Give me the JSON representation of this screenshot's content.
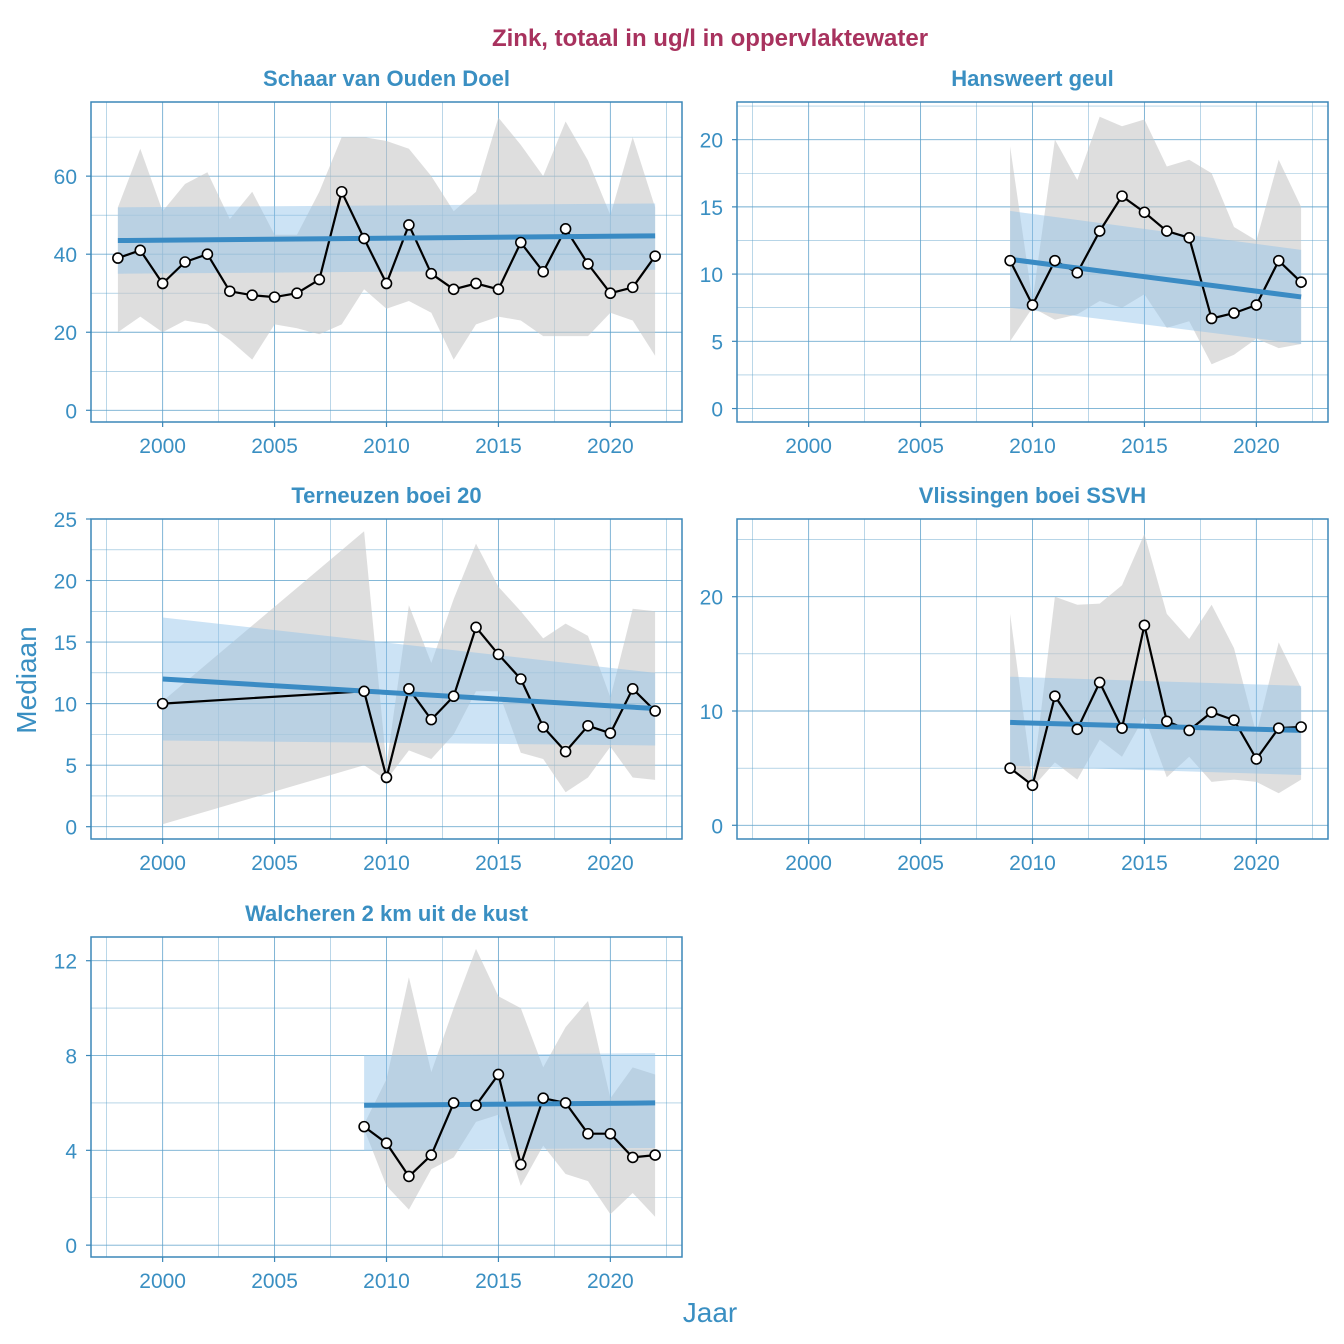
{
  "title": "Zink, totaal in ug/l in oppervlaktewater",
  "xlabel": "Jaar",
  "ylabel": "Mediaan",
  "colors": {
    "title": "#a8325e",
    "text": "#3a8fc2",
    "grid": "#5b9fc9",
    "frame": "#3b87b8",
    "trend": "#3a8bc4",
    "trend_band": "#8fc0e8",
    "range_band": "#c8c8c8",
    "line": "#000000"
  },
  "chart_data": [
    {
      "type": "line",
      "title": "Schaar van Ouden Doel",
      "xlim": [
        1996.8,
        2023.2
      ],
      "ylim": [
        -3,
        79
      ],
      "xticks": [
        2000,
        2005,
        2010,
        2015,
        2020
      ],
      "yticks": [
        0,
        20,
        40,
        60
      ],
      "x": [
        1998,
        1999,
        2000,
        2001,
        2002,
        2003,
        2004,
        2005,
        2006,
        2007,
        2008,
        2009,
        2010,
        2011,
        2012,
        2013,
        2014,
        2015,
        2016,
        2017,
        2018,
        2019,
        2020,
        2021,
        2022
      ],
      "median": [
        39,
        41,
        32.5,
        38,
        40,
        30.5,
        29.5,
        29,
        30,
        33.5,
        56,
        44,
        32.5,
        47.5,
        35,
        31,
        32.5,
        31,
        43,
        35.5,
        46.5,
        37.5,
        30,
        31.5,
        39.5
      ],
      "range_upper": [
        52,
        67,
        51,
        58,
        61,
        49,
        56,
        45,
        45,
        56,
        70,
        70,
        69,
        67,
        60,
        51,
        56,
        75,
        68,
        60,
        74,
        64,
        50,
        70,
        52
      ],
      "range_lower": [
        20,
        24,
        20,
        23,
        22,
        18,
        13,
        22,
        21,
        19.5,
        22,
        31,
        26,
        28,
        25,
        13,
        22,
        24,
        23,
        19,
        19,
        19,
        25,
        23,
        14
      ],
      "trend": [
        43.5,
        44.7
      ],
      "trend_upper": [
        52,
        53
      ],
      "trend_lower": [
        35,
        36
      ]
    },
    {
      "type": "line",
      "title": "Hansweert geul",
      "xlim": [
        1996.8,
        2023.2
      ],
      "ylim": [
        -1,
        22.8
      ],
      "xticks": [
        2000,
        2005,
        2010,
        2015,
        2020
      ],
      "yticks": [
        0,
        5,
        10,
        15,
        20
      ],
      "x": [
        2009,
        2010,
        2011,
        2012,
        2013,
        2014,
        2015,
        2016,
        2017,
        2018,
        2019,
        2020,
        2021,
        2022
      ],
      "median": [
        11,
        7.7,
        11,
        10.1,
        13.2,
        15.8,
        14.6,
        13.2,
        12.7,
        6.7,
        7.1,
        7.7,
        11,
        9.4
      ],
      "range_upper": [
        19.5,
        8,
        20,
        17,
        21.7,
        21,
        21.5,
        18,
        18.5,
        17.5,
        13.5,
        12.5,
        18.5,
        15
      ],
      "range_lower": [
        5,
        7.5,
        6.6,
        7,
        8,
        7.5,
        8.5,
        6,
        6.5,
        3.3,
        4,
        5.2,
        4.5,
        4.8
      ],
      "trend": [
        11.1,
        8.3
      ],
      "trend_upper": [
        14.7,
        11.8
      ],
      "trend_lower": [
        7.5,
        4.8
      ]
    },
    {
      "type": "line",
      "title": "Terneuzen boei 20",
      "xlim": [
        1996.8,
        2023.2
      ],
      "ylim": [
        -1,
        25
      ],
      "xticks": [
        2000,
        2005,
        2010,
        2015,
        2020
      ],
      "yticks": [
        0,
        5,
        10,
        15,
        20,
        25
      ],
      "x": [
        2000,
        2009,
        2010,
        2011,
        2012,
        2013,
        2014,
        2015,
        2016,
        2017,
        2018,
        2019,
        2020,
        2021,
        2022
      ],
      "median": [
        10,
        11,
        4,
        11.2,
        8.7,
        10.6,
        16.2,
        14,
        12,
        8.1,
        6.1,
        8.2,
        7.6,
        11.2,
        9.4
      ],
      "range_upper": [
        10.2,
        24,
        5,
        18,
        13.3,
        18.5,
        23,
        19.5,
        17.5,
        15.3,
        16.5,
        15.5,
        10.5,
        17.7,
        17.5
      ],
      "range_lower": [
        0.2,
        5,
        3.8,
        6.2,
        5.5,
        7.5,
        11,
        11,
        6,
        5.5,
        2.8,
        4,
        6.5,
        4,
        3.8
      ],
      "trend": [
        12,
        9.6
      ],
      "trend_upper": [
        17,
        12.5
      ],
      "trend_lower": [
        7,
        6.6
      ]
    },
    {
      "type": "line",
      "title": "Vlissingen boei SSVH",
      "xlim": [
        1996.8,
        2023.2
      ],
      "ylim": [
        -1.2,
        26.8
      ],
      "xticks": [
        2000,
        2005,
        2010,
        2015,
        2020
      ],
      "yticks": [
        0,
        10,
        20
      ],
      "x": [
        2009,
        2010,
        2011,
        2012,
        2013,
        2014,
        2015,
        2016,
        2017,
        2018,
        2019,
        2020,
        2021,
        2022
      ],
      "median": [
        5,
        3.5,
        11.3,
        8.4,
        12.5,
        8.5,
        17.5,
        9.1,
        8.3,
        9.9,
        9.2,
        5.8,
        8.5,
        8.6
      ],
      "range_upper": [
        18.5,
        3.8,
        20,
        19.3,
        19.4,
        21,
        25.5,
        18.5,
        16.3,
        19.3,
        15.5,
        8,
        16,
        12
      ],
      "range_lower": [
        5,
        3.3,
        5.5,
        4,
        7.5,
        6,
        9.5,
        4.2,
        6,
        3.8,
        4,
        3.8,
        2.8,
        4
      ],
      "trend": [
        9,
        8.3
      ],
      "trend_upper": [
        13,
        12.2
      ],
      "trend_lower": [
        5.2,
        4.4
      ]
    },
    {
      "type": "line",
      "title": "Walcheren 2 km uit de kust",
      "xlim": [
        1996.8,
        2023.2
      ],
      "ylim": [
        -0.5,
        13
      ],
      "xticks": [
        2000,
        2005,
        2010,
        2015,
        2020
      ],
      "yticks": [
        0,
        4,
        8,
        12
      ],
      "x": [
        2009,
        2010,
        2011,
        2012,
        2013,
        2014,
        2015,
        2016,
        2017,
        2018,
        2019,
        2020,
        2021,
        2022
      ],
      "median": [
        5,
        4.3,
        2.9,
        3.8,
        6,
        5.9,
        7.2,
        3.4,
        6.2,
        6,
        4.7,
        4.7,
        3.7,
        3.8
      ],
      "range_upper": [
        5.1,
        7,
        11.3,
        7.3,
        10,
        12.5,
        10.5,
        10,
        7.5,
        9.2,
        10.3,
        6.2,
        7.5,
        7.2
      ],
      "range_lower": [
        4.9,
        2.5,
        1.5,
        3.2,
        3.7,
        5.2,
        5.5,
        2.5,
        4.2,
        3,
        2.7,
        1.3,
        2.2,
        1.2
      ],
      "trend": [
        5.9,
        6
      ],
      "trend_upper": [
        8,
        8.1
      ],
      "trend_lower": [
        4,
        4.1
      ]
    }
  ]
}
